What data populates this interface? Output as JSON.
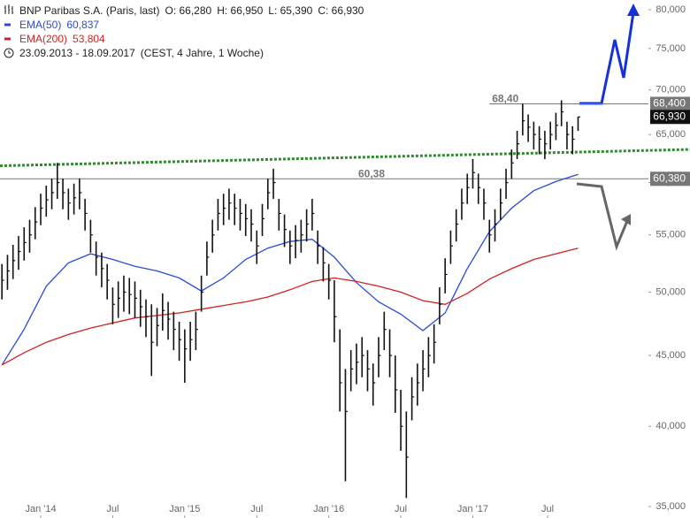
{
  "chart_data": {
    "type": "ohlc",
    "title": "BNP Paribas S.A. (Paris, last)",
    "quote": [
      "O: 66,280",
      "H: 66,950",
      "L: 65,390",
      "C: 66,930"
    ],
    "period": "23.09.2013 - 18.09.2017",
    "period_note": "(CEST, 4 Jahre, 1 Woche)",
    "log_scale": true,
    "xlim": [
      -0.7,
      233.4
    ],
    "xticks": [
      {
        "value": 14,
        "label": "Jan '14"
      },
      {
        "value": 40,
        "label": "Jul"
      },
      {
        "value": 66,
        "label": "Jan '15"
      },
      {
        "value": 92,
        "label": "Jul"
      },
      {
        "value": 118,
        "label": "Jan '16"
      },
      {
        "value": 144,
        "label": "Jul"
      },
      {
        "value": 170,
        "label": "Jan '17"
      },
      {
        "value": 197,
        "label": "Jul"
      }
    ],
    "ylim": [
      35,
      80
    ],
    "yticks": [
      {
        "value": 35,
        "label": "35,000"
      },
      {
        "value": 40,
        "label": "40,000"
      },
      {
        "value": 45,
        "label": "45,000"
      },
      {
        "value": 50,
        "label": "50,000"
      },
      {
        "value": 55,
        "label": "55,000"
      },
      {
        "value": 60,
        "label": "60,000"
      },
      {
        "value": 65,
        "label": "65,000"
      },
      {
        "value": 70,
        "label": "70,000"
      },
      {
        "value": 75,
        "label": "75,000"
      },
      {
        "value": 80,
        "label": "80,000"
      }
    ],
    "bars": {
      "color": "#111111",
      "close_label": "66,930",
      "x": [
        0,
        2,
        4,
        6,
        8,
        10,
        12,
        14,
        16,
        18,
        20,
        22,
        24,
        26,
        28,
        30,
        32,
        34,
        36,
        38,
        40,
        42,
        44,
        46,
        48,
        50,
        52,
        54,
        56,
        58,
        60,
        62,
        64,
        66,
        68,
        70,
        72,
        74,
        76,
        78,
        80,
        82,
        84,
        86,
        88,
        90,
        92,
        94,
        96,
        98,
        100,
        102,
        104,
        106,
        108,
        110,
        112,
        114,
        116,
        118,
        120,
        122,
        124,
        126,
        128,
        130,
        132,
        134,
        136,
        138,
        140,
        142,
        144,
        146,
        148,
        150,
        152,
        154,
        156,
        158,
        160,
        162,
        164,
        166,
        168,
        170,
        172,
        174,
        176,
        178,
        180,
        182,
        184,
        186,
        188,
        190,
        192,
        194,
        196,
        198,
        200,
        202,
        204,
        206,
        208
      ],
      "high": [
        52.4,
        53.2,
        54.1,
        54.9,
        55.7,
        56.4,
        57.6,
        58.9,
        59.7,
        60.4,
        62,
        60.4,
        59.4,
        59.9,
        60.4,
        58.4,
        56.4,
        54.4,
        53.4,
        52.4,
        50.4,
        50.9,
        51.4,
        51.2,
        50.9,
        50.2,
        49.4,
        49,
        48.7,
        49.9,
        49.2,
        48.4,
        47.6,
        47,
        47.6,
        48.4,
        51.4,
        54.4,
        56.4,
        58.4,
        58.9,
        59.4,
        58.9,
        58.4,
        57.9,
        57.4,
        55.4,
        57.9,
        60.4,
        61.4,
        58.4,
        56.9,
        55.4,
        55.9,
        56.4,
        57.4,
        58.4,
        55.4,
        53.9,
        52.4,
        51,
        47,
        44,
        45.4,
        45.9,
        46.4,
        45.4,
        44.4,
        46.4,
        48.4,
        47,
        45,
        42.5,
        41,
        43.4,
        44.4,
        45.4,
        46.4,
        47.4,
        50.4,
        52.9,
        55.4,
        57.4,
        59.4,
        60.9,
        62.4,
        60.9,
        59.4,
        56.4,
        57.4,
        59.4,
        61.4,
        63.4,
        65.4,
        68.4,
        67.2,
        66.4,
        65.9,
        65.4,
        66.4,
        67.4,
        68.8,
        66.4,
        65.9,
        66.95
      ],
      "low": [
        49.4,
        50.2,
        51.1,
        51.9,
        52.7,
        53.4,
        54.6,
        55.9,
        56.7,
        57.4,
        58.4,
        57.4,
        56.4,
        56.9,
        57.4,
        55.4,
        53.4,
        51.4,
        50.4,
        49.4,
        47.4,
        47.9,
        48.4,
        48.2,
        47.9,
        47.2,
        46.4,
        43.5,
        45.7,
        46.9,
        46.2,
        45.4,
        44.6,
        43,
        44.6,
        45.4,
        48.4,
        51.4,
        53.4,
        55.4,
        55.9,
        56.4,
        55.9,
        55.4,
        54.9,
        54.4,
        52.4,
        54.9,
        57.4,
        58.4,
        55.4,
        53.9,
        52.4,
        52.9,
        53.4,
        54.4,
        55.4,
        52.4,
        50.9,
        49.4,
        46,
        41,
        36.5,
        42.4,
        42.9,
        43.4,
        42.4,
        41.4,
        43.4,
        45.4,
        43.4,
        40.9,
        38.4,
        35.5,
        40.4,
        41.4,
        42.4,
        43.4,
        44.4,
        47.4,
        49.9,
        52.4,
        54.4,
        56.4,
        57.9,
        59.4,
        57.9,
        56.4,
        53.4,
        54.4,
        56.4,
        58.4,
        60.4,
        62.4,
        64.9,
        64.2,
        63.4,
        62.9,
        62.4,
        63.4,
        64.4,
        65.9,
        63.4,
        62.9,
        65.39
      ],
      "close": [
        51,
        51.8,
        52.7,
        53.5,
        54.3,
        55,
        56.2,
        57.5,
        58.3,
        59,
        60,
        59,
        58,
        58.5,
        59,
        57,
        55,
        53,
        52,
        51,
        49,
        49.5,
        50,
        49.8,
        49.5,
        48.8,
        48,
        46,
        47.3,
        48.5,
        47.8,
        47,
        46.2,
        45.5,
        46.2,
        47,
        50,
        53,
        55,
        57,
        57.5,
        58,
        57.5,
        57,
        56.5,
        56,
        54,
        56.5,
        59,
        60,
        57,
        55.5,
        54,
        54.5,
        55,
        56,
        57,
        54,
        52.5,
        51,
        48,
        43,
        41,
        44,
        44.5,
        45,
        44,
        43,
        45,
        47,
        45,
        42.5,
        40,
        38,
        42,
        43,
        44,
        45,
        46,
        49,
        51.5,
        54,
        56,
        58,
        59.5,
        61,
        59.5,
        58,
        55,
        56,
        58,
        60,
        62,
        64,
        66.5,
        65.8,
        65,
        64.5,
        64,
        65,
        66,
        67.5,
        65,
        64.5,
        66.93
      ]
    },
    "series": [
      {
        "name": "EMA(50)",
        "color": "#2a4bd7",
        "value_label": "60,837",
        "x": [
          0,
          8,
          16,
          24,
          32,
          40,
          48,
          56,
          64,
          72,
          80,
          88,
          96,
          104,
          112,
          120,
          128,
          136,
          144,
          152,
          160,
          168,
          176,
          184,
          192,
          200,
          208
        ],
        "values": [
          44.3,
          47,
          50.5,
          52.5,
          53.3,
          52.8,
          52.2,
          51.8,
          51.2,
          50.1,
          51.2,
          52.8,
          53.8,
          54.4,
          54.6,
          53,
          50.8,
          49.2,
          48.2,
          46.9,
          48.3,
          52,
          55.3,
          57.5,
          59.2,
          60.1,
          60.837
        ]
      },
      {
        "name": "EMA(200)",
        "color": "#d42020",
        "value_label": "53,804",
        "x": [
          0,
          8,
          16,
          24,
          32,
          40,
          48,
          56,
          64,
          72,
          80,
          88,
          96,
          104,
          112,
          120,
          128,
          136,
          144,
          152,
          160,
          168,
          176,
          184,
          192,
          200,
          208
        ],
        "values": [
          44.3,
          45.2,
          46,
          46.6,
          47.1,
          47.5,
          47.9,
          48.1,
          48.3,
          48.6,
          48.9,
          49.2,
          49.6,
          50.2,
          50.9,
          51.2,
          50.9,
          50.5,
          50,
          49.3,
          49,
          49.9,
          51.1,
          52,
          52.8,
          53.3,
          53.804
        ]
      }
    ],
    "levels": [
      {
        "value": 68.4,
        "label": "68,40",
        "axis_label": "68,400",
        "from_x": 176,
        "color": "#777777"
      },
      {
        "value": 60.38,
        "label": "60,38",
        "axis_label": "60,380",
        "color": "#777777"
      }
    ],
    "trendline": {
      "values": [
        61.7,
        63.3
      ],
      "color": "#2e8b2e"
    }
  }
}
